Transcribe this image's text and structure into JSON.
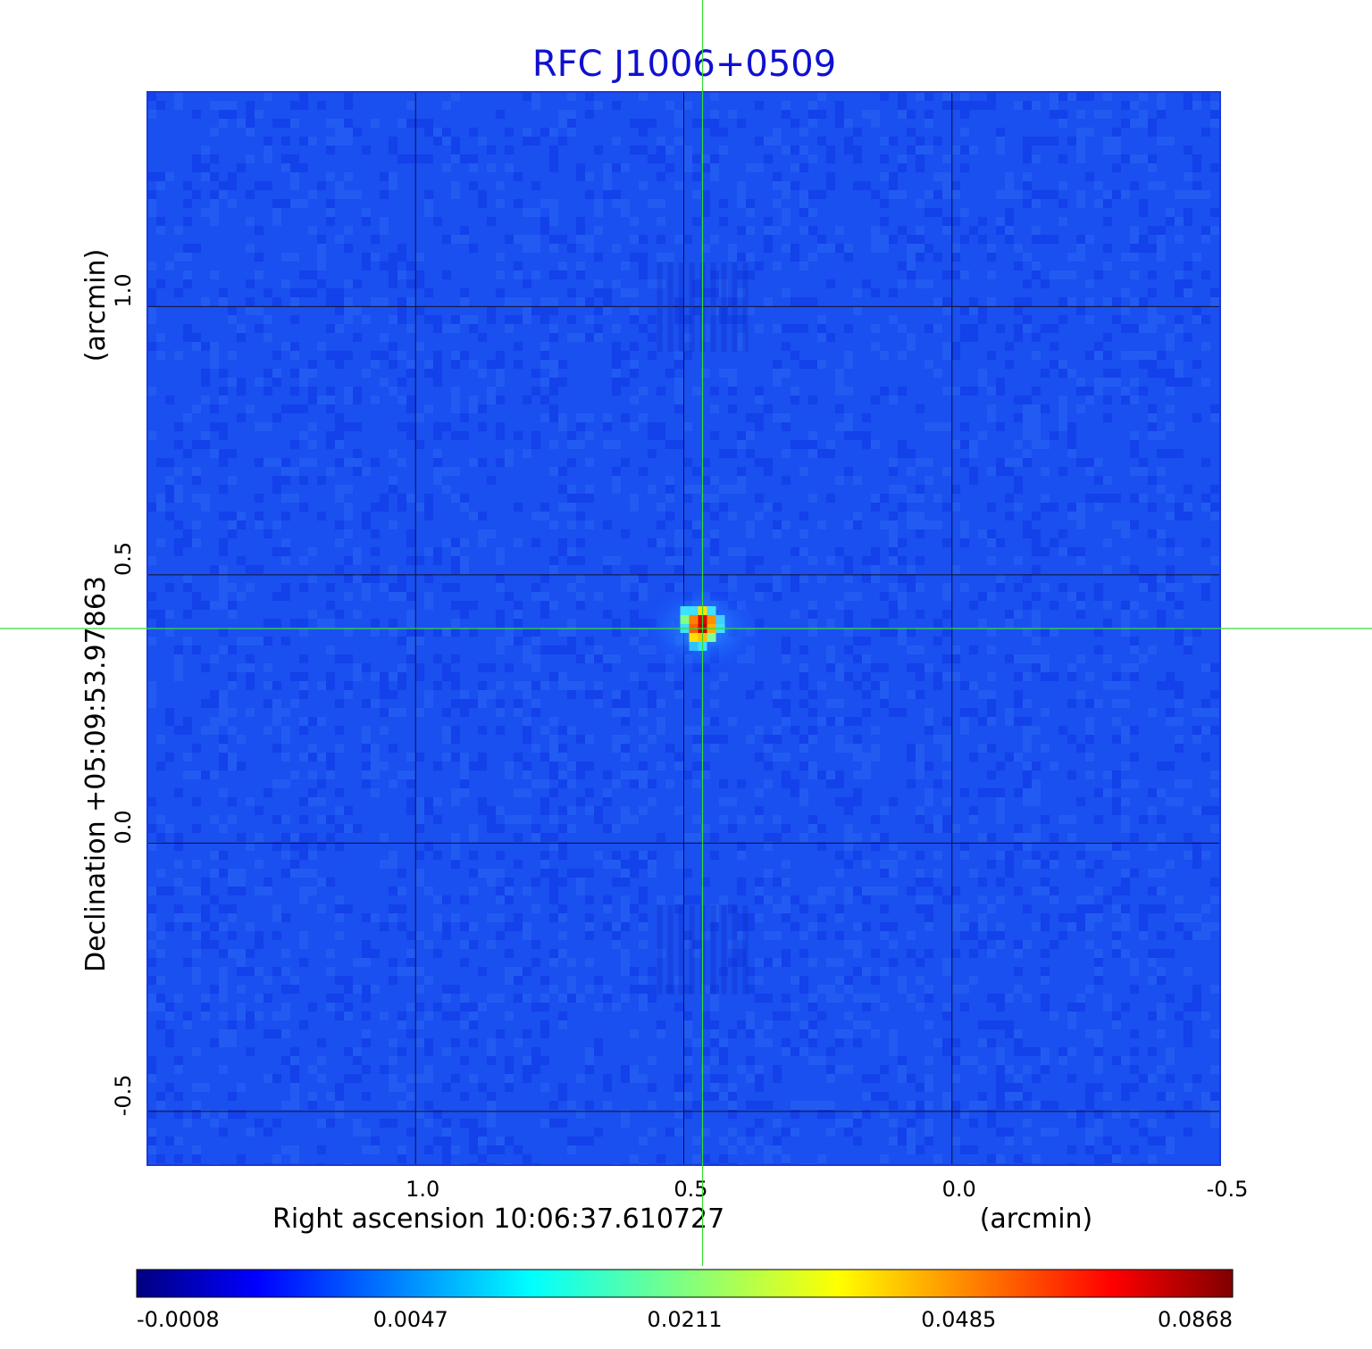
{
  "chart_data": {
    "type": "heatmap",
    "title": "RFC J1006+0509",
    "xlabel": "Right ascension  10:06:37.610727",
    "xunit": "(arcmin)",
    "ylabel": "Declination  +05:09:53.97863",
    "yunit": "(arcmin)",
    "x_ticks": [
      "1.0",
      "0.5",
      "0.0",
      "-0.5"
    ],
    "y_ticks": [
      "1.0",
      "0.5",
      "0.0",
      "-0.5"
    ],
    "xlim": [
      1.5,
      -0.5
    ],
    "ylim": [
      -0.6,
      1.4
    ],
    "grid": true,
    "crosshair": {
      "x": 0.465,
      "y": 0.4,
      "color": "#33dd33"
    },
    "source": {
      "x": 0.465,
      "y": 0.4,
      "peak": 0.0868
    },
    "colormap": "jet",
    "colorbar": {
      "ticks": [
        "-0.0008",
        "0.0047",
        "0.0211",
        "0.0485",
        "0.0868"
      ],
      "min": -0.0008,
      "max": 0.0868
    }
  }
}
